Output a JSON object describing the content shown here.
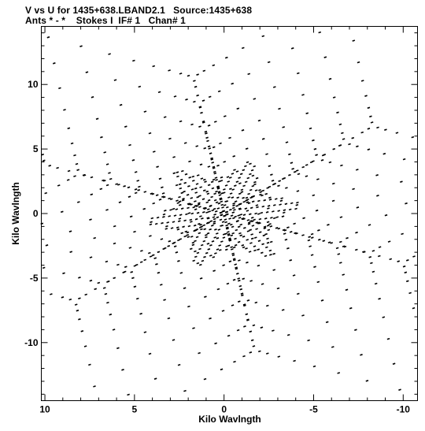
{
  "header": {
    "line1": "V vs U for 1435+638.LBAND2.1   Source:1435+638",
    "line2": "Ants * - *    Stokes I  IF# 1   Chan# 1"
  },
  "chart_data": {
    "type": "scatter",
    "xlabel": "Kilo Wavlngth",
    "ylabel": "Kilo Wavlngth",
    "xlim": [
      10.2,
      -10.8
    ],
    "ylim": [
      -14.5,
      14.5
    ],
    "x_ticks": [
      10,
      5,
      0,
      -5,
      -10
    ],
    "y_ticks": [
      10,
      5,
      0,
      -5,
      -10
    ],
    "x_tick_labels": [
      "10",
      "5",
      "0",
      "-5",
      "-10"
    ],
    "y_tick_labels": [
      "10",
      "5",
      "0",
      "-5",
      "-10"
    ],
    "grid": false,
    "symbol_color": "#000000",
    "uv_coverage": {
      "description_of_structure": "six-armed snowflake uv track pattern (Y-shaped array, snapshot), symmetric under (u,v)->(-u,-v)",
      "arm_tips": [
        {
          "u": 1.9,
          "v": 14.0
        },
        {
          "u": -8.6,
          "v": 11.3
        },
        {
          "u": -9.9,
          "v": -2.8
        },
        {
          "u": -1.3,
          "v": -14.1
        },
        {
          "u": 8.2,
          "v": -11.4
        },
        {
          "u": 10.0,
          "v": 2.8
        }
      ],
      "arm_valleys": [
        {
          "u": -2.3,
          "v": 8.7
        },
        {
          "u": -6.6,
          "v": 2.3
        },
        {
          "u": -4.0,
          "v": -6.0
        },
        {
          "u": 2.6,
          "v": -8.9
        },
        {
          "u": 6.5,
          "v": -2.6
        },
        {
          "u": 3.4,
          "v": 6.0
        }
      ]
    }
  }
}
